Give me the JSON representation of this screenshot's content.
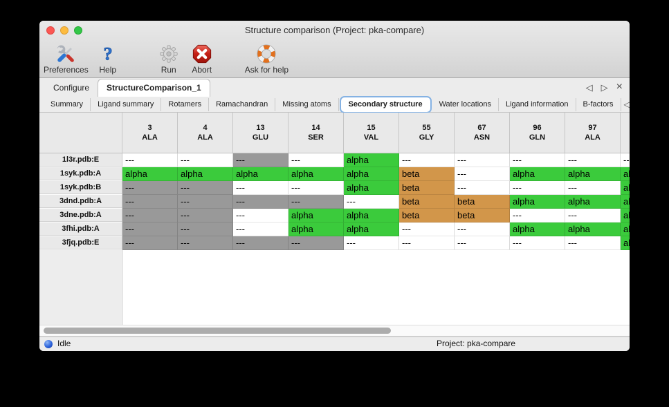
{
  "window": {
    "title": "Structure comparison (Project: pka-compare)"
  },
  "toolbar": {
    "buttons": [
      {
        "label": "Preferences",
        "icon": "preferences-tools-icon"
      },
      {
        "label": "Help",
        "icon": "help-question-icon"
      },
      {
        "label": "Run",
        "icon": "run-gear-icon"
      },
      {
        "label": "Abort",
        "icon": "abort-stop-icon"
      },
      {
        "label": "Ask for help",
        "icon": "lifebuoy-icon"
      }
    ]
  },
  "main_tabs": {
    "items": [
      {
        "label": "Configure",
        "active": false
      },
      {
        "label": "StructureComparison_1",
        "active": true
      }
    ],
    "controls": {
      "prev": "◁",
      "next": "▷",
      "close": "×"
    }
  },
  "sub_tabs": {
    "items": [
      {
        "label": "Summary",
        "active": false
      },
      {
        "label": "Ligand summary",
        "active": false
      },
      {
        "label": "Rotamers",
        "active": false
      },
      {
        "label": "Ramachandran",
        "active": false
      },
      {
        "label": "Missing atoms",
        "active": false
      },
      {
        "label": "Secondary structure",
        "active": true
      },
      {
        "label": "Water locations",
        "active": false
      },
      {
        "label": "Ligand information",
        "active": false
      },
      {
        "label": "B-factors",
        "active": false
      }
    ],
    "controls": {
      "prev": "◁",
      "next": "▷"
    }
  },
  "table": {
    "colors": {
      "white": "#FFFFFF",
      "gray": "#999999",
      "green": "#3BCB3C",
      "orange": "#D2964A"
    },
    "columns": [
      {
        "num": "3",
        "res": "ALA"
      },
      {
        "num": "4",
        "res": "ALA"
      },
      {
        "num": "13",
        "res": "GLU"
      },
      {
        "num": "14",
        "res": "SER"
      },
      {
        "num": "15",
        "res": "VAL"
      },
      {
        "num": "55",
        "res": "GLY"
      },
      {
        "num": "67",
        "res": "ASN"
      },
      {
        "num": "96",
        "res": "GLN"
      },
      {
        "num": "97",
        "res": "ALA"
      },
      {
        "num": "",
        "res": ""
      }
    ],
    "rows": [
      {
        "label": "1l3r.pdb:E",
        "cells": [
          {
            "text": "---",
            "color": "white"
          },
          {
            "text": "---",
            "color": "white"
          },
          {
            "text": "---",
            "color": "gray"
          },
          {
            "text": "---",
            "color": "white"
          },
          {
            "text": "alpha",
            "color": "green"
          },
          {
            "text": "---",
            "color": "white"
          },
          {
            "text": "---",
            "color": "white"
          },
          {
            "text": "---",
            "color": "white"
          },
          {
            "text": "---",
            "color": "white"
          },
          {
            "text": "---",
            "color": "white"
          }
        ]
      },
      {
        "label": "1syk.pdb:A",
        "cells": [
          {
            "text": "alpha",
            "color": "green"
          },
          {
            "text": "alpha",
            "color": "green"
          },
          {
            "text": "alpha",
            "color": "green"
          },
          {
            "text": "alpha",
            "color": "green"
          },
          {
            "text": "alpha",
            "color": "green"
          },
          {
            "text": "beta",
            "color": "orange"
          },
          {
            "text": "---",
            "color": "white"
          },
          {
            "text": "alpha",
            "color": "green"
          },
          {
            "text": "alpha",
            "color": "green"
          },
          {
            "text": "alpha",
            "color": "green"
          }
        ]
      },
      {
        "label": "1syk.pdb:B",
        "cells": [
          {
            "text": "---",
            "color": "gray"
          },
          {
            "text": "---",
            "color": "gray"
          },
          {
            "text": "---",
            "color": "white"
          },
          {
            "text": "---",
            "color": "white"
          },
          {
            "text": "alpha",
            "color": "green"
          },
          {
            "text": "beta",
            "color": "orange"
          },
          {
            "text": "---",
            "color": "white"
          },
          {
            "text": "---",
            "color": "white"
          },
          {
            "text": "---",
            "color": "white"
          },
          {
            "text": "alpha",
            "color": "green"
          }
        ]
      },
      {
        "label": "3dnd.pdb:A",
        "cells": [
          {
            "text": "---",
            "color": "gray"
          },
          {
            "text": "---",
            "color": "gray"
          },
          {
            "text": "---",
            "color": "gray"
          },
          {
            "text": "---",
            "color": "gray"
          },
          {
            "text": "---",
            "color": "white"
          },
          {
            "text": "beta",
            "color": "orange"
          },
          {
            "text": "beta",
            "color": "orange"
          },
          {
            "text": "alpha",
            "color": "green"
          },
          {
            "text": "alpha",
            "color": "green"
          },
          {
            "text": "alpha",
            "color": "green"
          }
        ]
      },
      {
        "label": "3dne.pdb:A",
        "cells": [
          {
            "text": "---",
            "color": "gray"
          },
          {
            "text": "---",
            "color": "gray"
          },
          {
            "text": "---",
            "color": "white"
          },
          {
            "text": "alpha",
            "color": "green"
          },
          {
            "text": "alpha",
            "color": "green"
          },
          {
            "text": "beta",
            "color": "orange"
          },
          {
            "text": "beta",
            "color": "orange"
          },
          {
            "text": "---",
            "color": "white"
          },
          {
            "text": "---",
            "color": "white"
          },
          {
            "text": "alpha",
            "color": "green"
          }
        ]
      },
      {
        "label": "3fhi.pdb:A",
        "cells": [
          {
            "text": "---",
            "color": "gray"
          },
          {
            "text": "---",
            "color": "gray"
          },
          {
            "text": "---",
            "color": "white"
          },
          {
            "text": "alpha",
            "color": "green"
          },
          {
            "text": "alpha",
            "color": "green"
          },
          {
            "text": "---",
            "color": "white"
          },
          {
            "text": "---",
            "color": "white"
          },
          {
            "text": "alpha",
            "color": "green"
          },
          {
            "text": "alpha",
            "color": "green"
          },
          {
            "text": "alpha",
            "color": "green"
          }
        ]
      },
      {
        "label": "3fjq.pdb:E",
        "cells": [
          {
            "text": "---",
            "color": "gray"
          },
          {
            "text": "---",
            "color": "gray"
          },
          {
            "text": "---",
            "color": "gray"
          },
          {
            "text": "---",
            "color": "gray"
          },
          {
            "text": "---",
            "color": "white"
          },
          {
            "text": "---",
            "color": "white"
          },
          {
            "text": "---",
            "color": "white"
          },
          {
            "text": "---",
            "color": "white"
          },
          {
            "text": "---",
            "color": "white"
          },
          {
            "text": "alpha",
            "color": "green"
          }
        ]
      }
    ]
  },
  "status_bar": {
    "state": "Idle",
    "project": "Project: pka-compare"
  }
}
